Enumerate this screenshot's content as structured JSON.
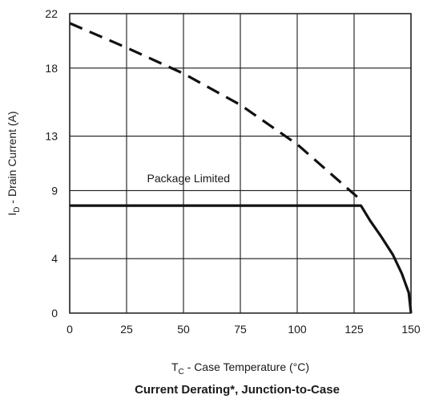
{
  "chart_data": {
    "type": "line",
    "title": "Current Derating*, Junction-to-Case",
    "xlabel": {
      "main": "T",
      "sub": "C",
      "rest": " - Case Temperature (°C)"
    },
    "ylabel": {
      "main": "I",
      "sub": "D",
      "rest": " - Drain Current (A)"
    },
    "xlim": [
      0,
      150
    ],
    "ylim": [
      0,
      22
    ],
    "x_ticks": [
      0,
      25,
      50,
      75,
      100,
      125,
      150
    ],
    "y_ticks": [
      0,
      4,
      9,
      13,
      18,
      22
    ],
    "grid": true,
    "annotations": [
      {
        "text": "Package Limited",
        "x": 34,
        "y": 9.6
      }
    ],
    "series": [
      {
        "style": "dashed",
        "x": [
          0,
          25,
          50,
          75,
          100,
          128
        ],
        "y": [
          21.3,
          19.5,
          17.6,
          15.3,
          12.4,
          8.3
        ]
      },
      {
        "style": "solid",
        "x": [
          0,
          128,
          132,
          137,
          142,
          146,
          149,
          150
        ],
        "y": [
          7.9,
          7.9,
          6.8,
          5.6,
          4.3,
          2.9,
          1.5,
          0
        ]
      }
    ]
  }
}
